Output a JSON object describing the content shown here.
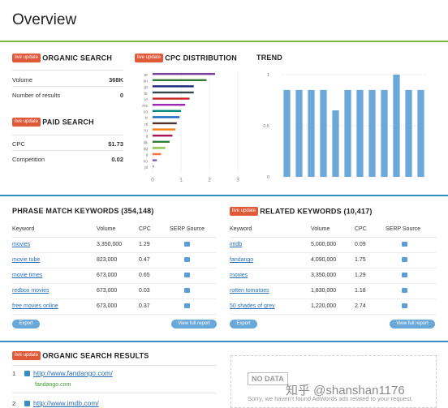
{
  "page_title": "Overview",
  "badge_label": "live update",
  "organic": {
    "title": "ORGANIC SEARCH",
    "rows": [
      {
        "label": "Volume",
        "value": "368K"
      },
      {
        "label": "Number of results",
        "value": "0"
      }
    ]
  },
  "paid": {
    "title": "PAID SEARCH",
    "rows": [
      {
        "label": "CPC",
        "value": "$1.73"
      },
      {
        "label": "Competition",
        "value": "0.02"
      }
    ]
  },
  "cpc_distribution": {
    "title": "CPC DISTRIBUTION"
  },
  "trend": {
    "title": "TREND"
  },
  "chart_data": [
    {
      "type": "bar",
      "orientation": "horizontal",
      "title": "CPC DISTRIBUTION",
      "categories": [
        "ar",
        "au",
        "jp",
        "br",
        "ie",
        "mx",
        "ca",
        "tr",
        "nl",
        "ru",
        "it",
        "dk",
        "sg",
        "il",
        "no",
        "pl"
      ],
      "values": [
        2.2,
        1.9,
        1.45,
        1.45,
        1.3,
        1.15,
        1.0,
        0.95,
        0.85,
        0.8,
        0.7,
        0.6,
        0.45,
        0.3,
        0.15,
        0.05
      ],
      "colors": [
        "#7b3fa0",
        "#2e7d32",
        "#1a237e",
        "#37474f",
        "#c62828",
        "#9c27b0",
        "#00897b",
        "#1565c0",
        "#4e342e",
        "#f57f17",
        "#ad1457",
        "#2e7d32",
        "#8bc34a",
        "#ff7043",
        "#7e57c2",
        "#90a4ae"
      ],
      "x_ticks": [
        "0",
        "1",
        "2",
        "3"
      ],
      "xlim": [
        0,
        3
      ]
    },
    {
      "type": "bar",
      "title": "TREND",
      "values": [
        0.85,
        0.85,
        0.85,
        0.85,
        0.65,
        0.85,
        0.85,
        0.85,
        0.85,
        1.0,
        0.85,
        0.85
      ],
      "y_ticks": [
        "1",
        "0.5",
        "0"
      ],
      "ylim": [
        0,
        1
      ],
      "color": "#6aa8d9"
    }
  ],
  "phrase": {
    "title": "PHRASE MATCH KEYWORDS (354,148)",
    "columns": [
      "Keyword",
      "Volume",
      "CPC",
      "SERP Source"
    ],
    "rows": [
      {
        "keyword": "movies",
        "volume": "3,350,000",
        "cpc": "1.29"
      },
      {
        "keyword": "movie tube",
        "volume": "823,000",
        "cpc": "0.47"
      },
      {
        "keyword": "movie times",
        "volume": "673,000",
        "cpc": "0.65"
      },
      {
        "keyword": "redbox movies",
        "volume": "673,000",
        "cpc": "0.03"
      },
      {
        "keyword": "free movies online",
        "volume": "673,000",
        "cpc": "0.37"
      }
    ],
    "export_label": "Export",
    "full_report_label": "View full report"
  },
  "related": {
    "title": "RELATED KEYWORDS (10,417)",
    "columns": [
      "Keyword",
      "Volume",
      "CPC",
      "SERP Source"
    ],
    "rows": [
      {
        "keyword": "imdb",
        "volume": "5,000,000",
        "cpc": "0.09"
      },
      {
        "keyword": "fandango",
        "volume": "4,090,000",
        "cpc": "1.75"
      },
      {
        "keyword": "movies",
        "volume": "3,350,000",
        "cpc": "1.29"
      },
      {
        "keyword": "rotten tomatoes",
        "volume": "1,830,000",
        "cpc": "1.18"
      },
      {
        "keyword": "50 shades of grey",
        "volume": "1,220,000",
        "cpc": "2.74"
      }
    ],
    "export_label": "Export",
    "full_report_label": "View full report"
  },
  "organic_results": {
    "title": "ORGANIC SEARCH RESULTS",
    "items": [
      {
        "num": "1",
        "url": "http://www.fandango.com/",
        "domain": "fandango.com"
      },
      {
        "num": "2",
        "url": "http://www.imdb.com/",
        "domain": ""
      }
    ]
  },
  "no_data": {
    "tag": "NO DATA",
    "message": "Sorry, we haven't found AdWords ads related to your request."
  },
  "watermark": "知乎 @shanshan1176"
}
